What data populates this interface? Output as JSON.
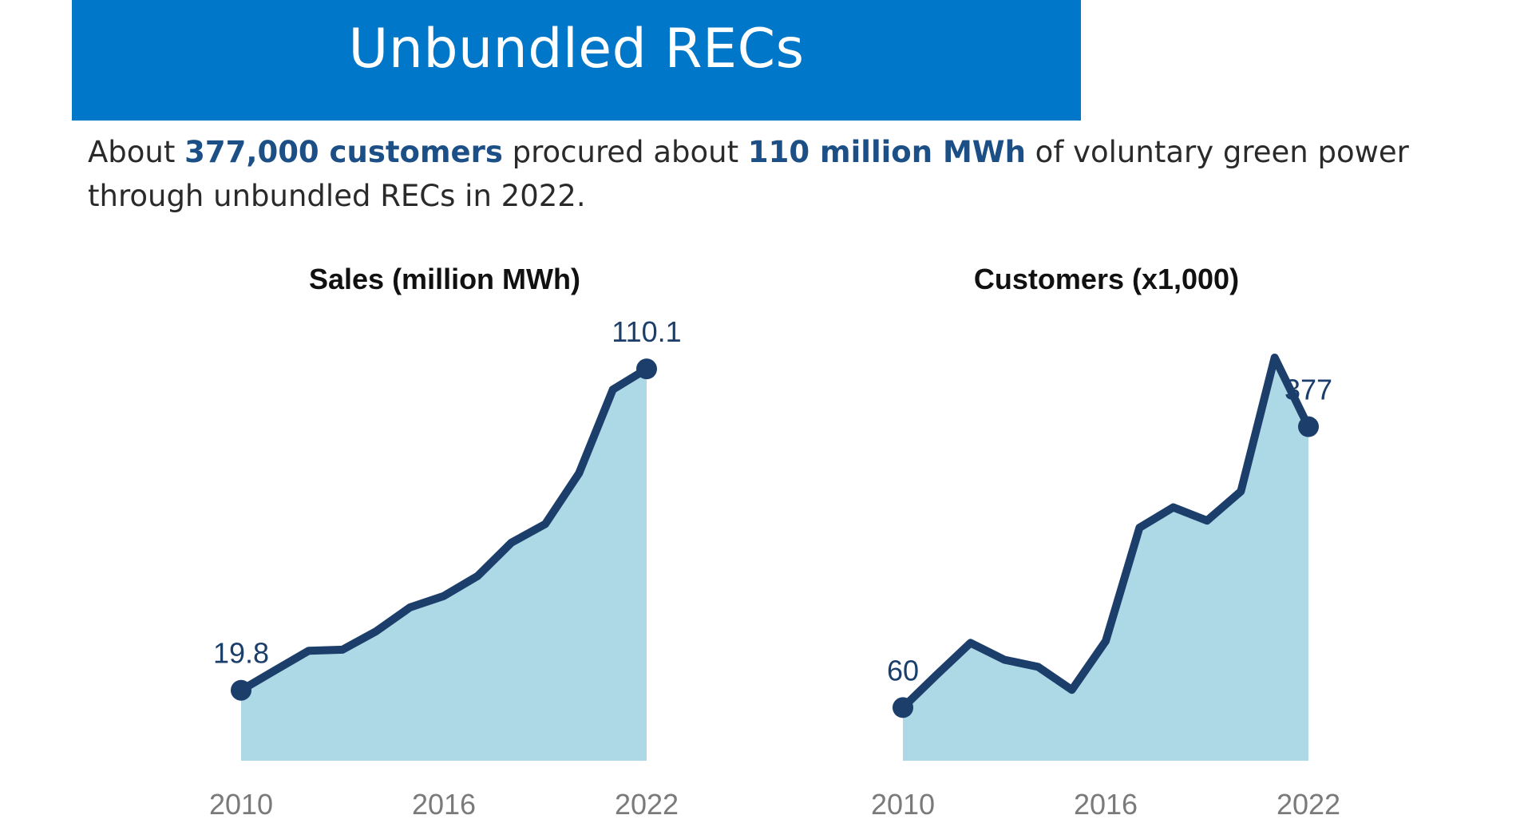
{
  "header": {
    "title": "Unbundled RECs"
  },
  "summary": {
    "prefix": "About ",
    "customers_highlight": "377,000 customers",
    "middle": " procured about ",
    "sales_highlight": "110 million MWh",
    "suffix": " of voluntary green power through unbundled RECs in 2022."
  },
  "colors": {
    "banner": "#0077c8",
    "line": "#1b3e6b",
    "fill": "#add8e6"
  },
  "chart_data": [
    {
      "type": "area",
      "title": "Sales (million MWh)",
      "x": [
        2010,
        2011,
        2012,
        2013,
        2014,
        2015,
        2016,
        2017,
        2018,
        2019,
        2020,
        2021,
        2022
      ],
      "values": [
        19.8,
        25.4,
        30.9,
        31.2,
        36.4,
        43.1,
        46.3,
        51.9,
        61.3,
        66.5,
        80.8,
        104.3,
        110.1
      ],
      "ylim": [
        0,
        120
      ],
      "xticks": [
        "2010",
        "2016",
        "2022"
      ],
      "labels": [
        {
          "index": 0,
          "text": "19.8"
        },
        {
          "index": 12,
          "text": "110.1"
        }
      ]
    },
    {
      "type": "area",
      "title": "Customers (x1,000)",
      "x": [
        2010,
        2011,
        2012,
        2013,
        2014,
        2015,
        2016,
        2017,
        2018,
        2019,
        2020,
        2021,
        2022
      ],
      "values": [
        60,
        97,
        133,
        114,
        106,
        80,
        135,
        263,
        286,
        271,
        304,
        455,
        377
      ],
      "ylim": [
        0,
        500
      ],
      "xticks": [
        "2010",
        "2016",
        "2022"
      ],
      "labels": [
        {
          "index": 0,
          "text": "60"
        },
        {
          "index": 12,
          "text": "377"
        }
      ]
    }
  ]
}
